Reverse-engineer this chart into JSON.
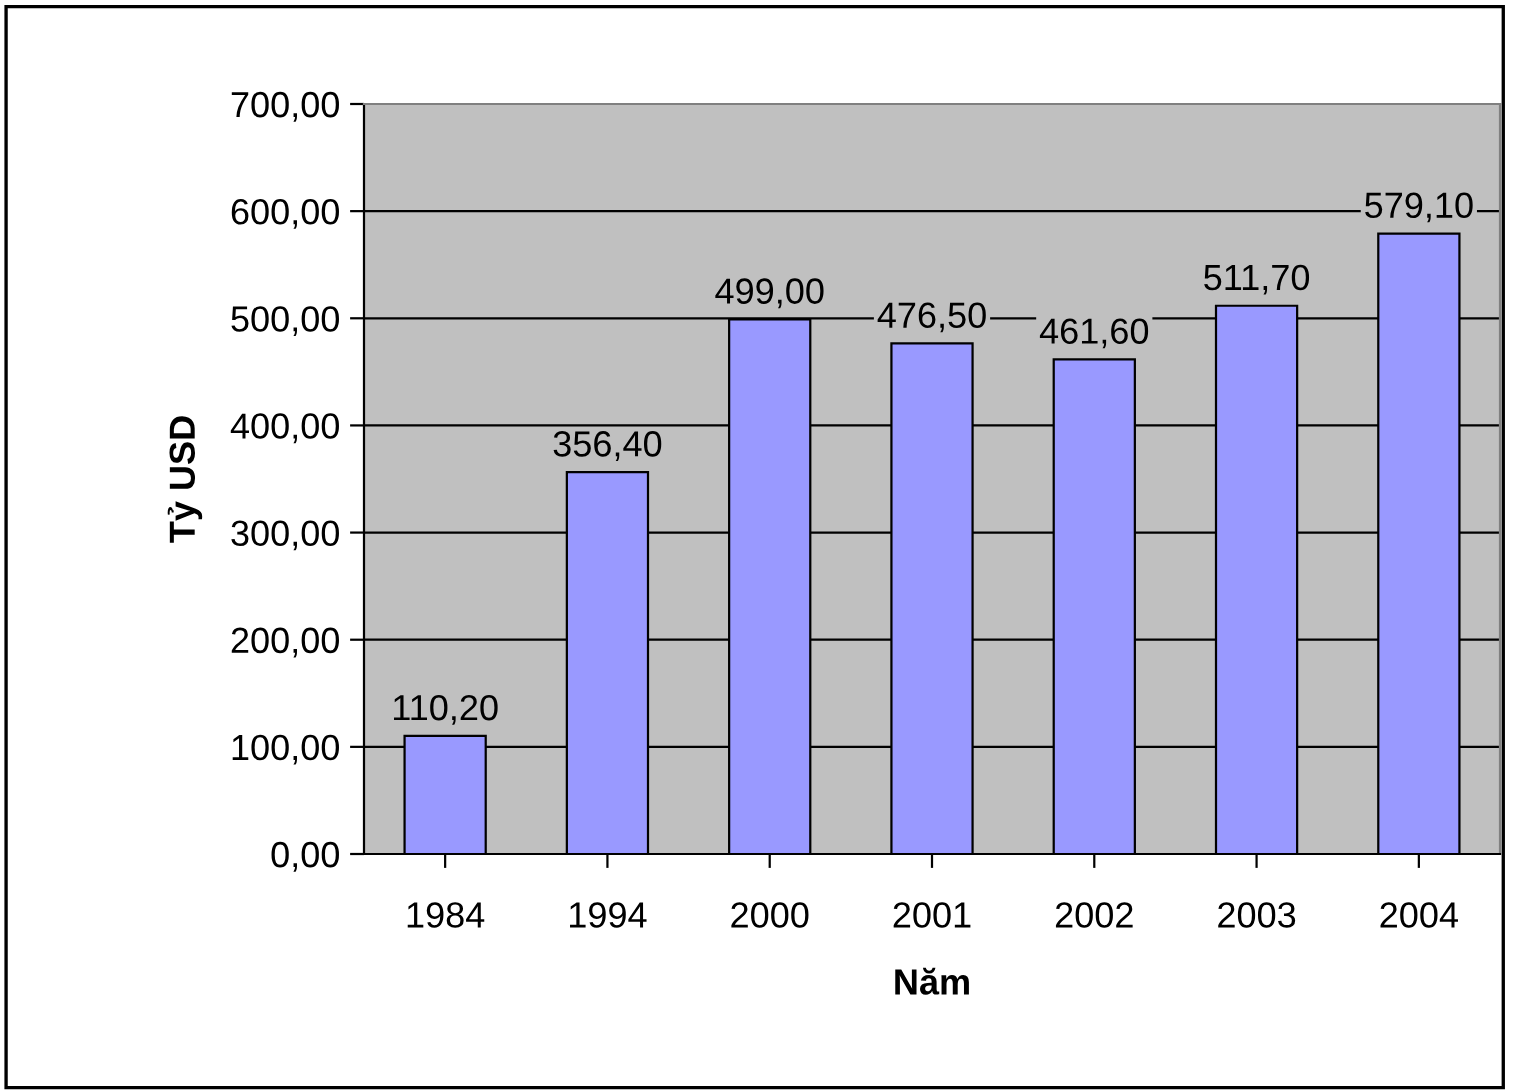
{
  "chart_data": {
    "type": "bar",
    "xlabel": "Năm",
    "ylabel": "Tỷ USD",
    "categories": [
      "1984",
      "1994",
      "2000",
      "2001",
      "2002",
      "2003",
      "2004"
    ],
    "values": [
      110.2,
      356.4,
      499.0,
      476.5,
      461.6,
      511.7,
      579.1
    ],
    "value_labels": [
      "110,20",
      "356,40",
      "499,00",
      "476,50",
      "461,60",
      "511,70",
      "579,10"
    ],
    "color": "#9999ff",
    "ylim": [
      0,
      700
    ],
    "yticks": [
      {
        "value": 0,
        "label": "0,00"
      },
      {
        "value": 100,
        "label": "100,00"
      },
      {
        "value": 200,
        "label": "200,00"
      },
      {
        "value": 300,
        "label": "300,00"
      },
      {
        "value": 400,
        "label": "400,00"
      },
      {
        "value": 500,
        "label": "500,00"
      },
      {
        "value": 600,
        "label": "600,00"
      },
      {
        "value": 700,
        "label": "700,00"
      }
    ],
    "grid": "y"
  }
}
